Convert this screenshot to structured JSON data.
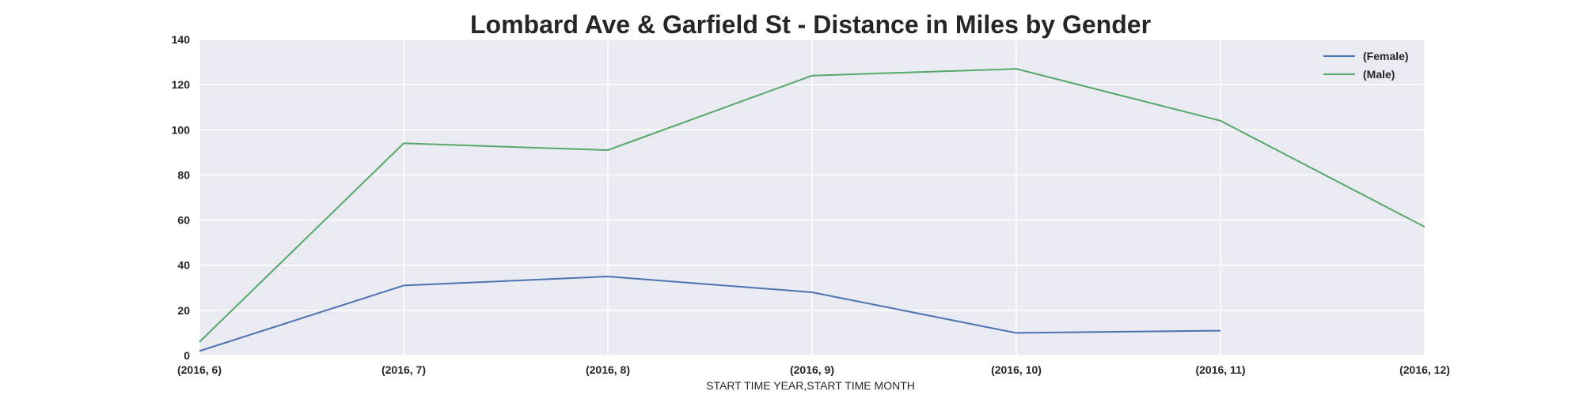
{
  "chart_data": {
    "type": "line",
    "title": "Lombard Ave & Garfield St - Distance in Miles by Gender",
    "xlabel": "START TIME YEAR,START TIME MONTH",
    "ylabel": "",
    "categories": [
      "(2016, 6)",
      "(2016, 7)",
      "(2016, 8)",
      "(2016, 9)",
      "(2016, 10)",
      "(2016, 11)",
      "(2016, 12)"
    ],
    "ylim": [
      0,
      140
    ],
    "yticks": [
      0,
      20,
      40,
      60,
      80,
      100,
      120,
      140
    ],
    "grid": true,
    "legend_position": "top-right",
    "series": [
      {
        "name": "(Female)",
        "color": "#4c72b0",
        "values": [
          2,
          31,
          35,
          28,
          10,
          11,
          null
        ]
      },
      {
        "name": "(Male)",
        "color": "#55a868",
        "values": [
          6,
          94,
          91,
          124,
          127,
          104,
          57
        ]
      }
    ]
  }
}
